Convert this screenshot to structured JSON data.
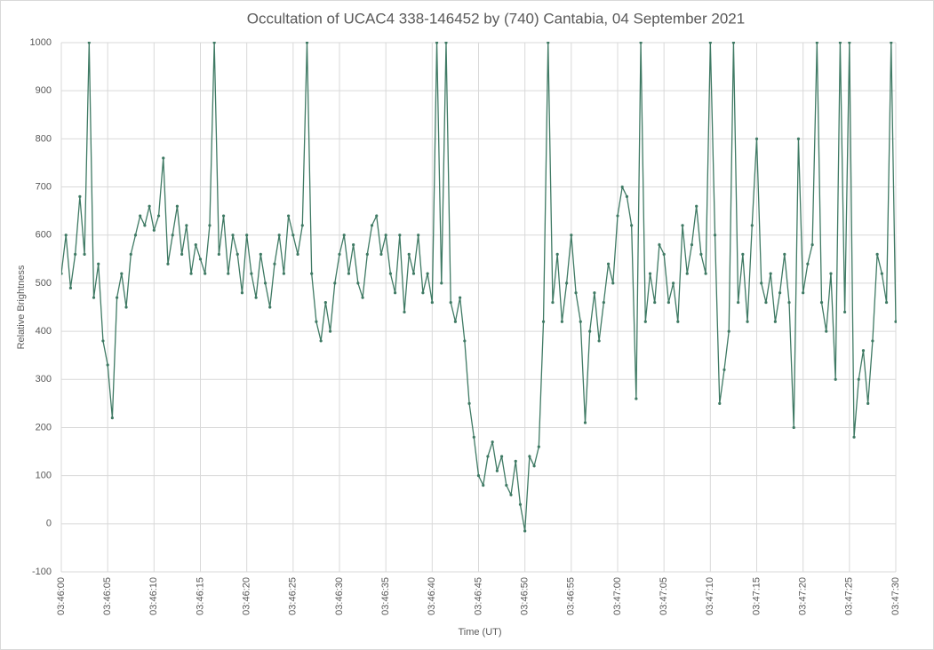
{
  "chart_data": {
    "type": "line",
    "title": "Occultation of UCAC4 338-146452 by (740) Cantabia, 04 September 2021",
    "xlabel": "Time (UT)",
    "ylabel": "Relative Brightness",
    "x": [
      0,
      0.5,
      1,
      1.5,
      2,
      2.5,
      3,
      3.5,
      4,
      4.5,
      5,
      5.5,
      6,
      6.5,
      7,
      7.5,
      8,
      8.5,
      9,
      9.5,
      10,
      10.5,
      11,
      11.5,
      12,
      12.5,
      13,
      13.5,
      14,
      14.5,
      15,
      15.5,
      16,
      16.5,
      17,
      17.5,
      18,
      18.5,
      19,
      19.5,
      20,
      20.5,
      21,
      21.5,
      22,
      22.5,
      23,
      23.5,
      24,
      24.5,
      25,
      25.5,
      26,
      26.5,
      27,
      27.5,
      28,
      28.5,
      29,
      29.5,
      30,
      30.5,
      31,
      31.5,
      32,
      32.5,
      33,
      33.5,
      34,
      34.5,
      35,
      35.5,
      36,
      36.5,
      37,
      37.5,
      38,
      38.5,
      39,
      39.5,
      40,
      40.5,
      41,
      41.5,
      42,
      42.5,
      43,
      43.5,
      44,
      44.5,
      45,
      45.5,
      46,
      46.5,
      47,
      47.5,
      48,
      48.5,
      49,
      49.5,
      50,
      50.5,
      51,
      51.5,
      52,
      52.5,
      53,
      53.5,
      54,
      54.5,
      55,
      55.5,
      56,
      56.5,
      57,
      57.5,
      58,
      58.5,
      59,
      59.5,
      60,
      60.5,
      61,
      61.5,
      62,
      62.5,
      63,
      63.5,
      64,
      64.5,
      65,
      65.5,
      66,
      66.5,
      67,
      67.5,
      68,
      68.5,
      69,
      69.5,
      70,
      70.5,
      71,
      71.5,
      72,
      72.5,
      73,
      73.5,
      74,
      74.5,
      75,
      75.5,
      76,
      76.5,
      77,
      77.5,
      78,
      78.5,
      79,
      79.5,
      80,
      80.5,
      81,
      81.5,
      82,
      82.5,
      83,
      83.5,
      84,
      84.5,
      85,
      85.5,
      86,
      86.5,
      87,
      87.5,
      88,
      88.5,
      89,
      89.5,
      90
    ],
    "series": [
      {
        "name": "Relative Brightness",
        "color": "#3f7a64",
        "values": [
          520,
          600,
          490,
          560,
          680,
          560,
          1000,
          470,
          540,
          380,
          330,
          220,
          470,
          520,
          450,
          560,
          600,
          640,
          620,
          660,
          610,
          640,
          760,
          540,
          600,
          660,
          560,
          620,
          520,
          580,
          550,
          520,
          620,
          1000,
          560,
          640,
          520,
          600,
          560,
          480,
          600,
          520,
          470,
          560,
          500,
          450,
          540,
          600,
          520,
          640,
          600,
          560,
          620,
          1000,
          520,
          420,
          380,
          460,
          400,
          500,
          560,
          600,
          520,
          580,
          500,
          470,
          560,
          620,
          640,
          560,
          600,
          520,
          480,
          600,
          440,
          560,
          520,
          600,
          480,
          520,
          460,
          1000,
          500,
          1000,
          460,
          420,
          470,
          380,
          250,
          180,
          100,
          80,
          140,
          170,
          110,
          140,
          80,
          60,
          130,
          40,
          -15,
          140,
          120,
          160,
          420,
          1000,
          460,
          560,
          420,
          500,
          600,
          480,
          420,
          210,
          400,
          480,
          380,
          460,
          540,
          500,
          640,
          700,
          680,
          620,
          260,
          1000,
          420,
          520,
          460,
          580,
          560,
          460,
          500,
          420,
          620,
          520,
          580,
          660,
          560,
          520,
          1000,
          600,
          250,
          320,
          400,
          1000,
          460,
          560,
          420,
          620,
          800,
          500,
          460,
          520,
          420,
          480,
          560,
          460,
          200,
          800,
          480,
          540,
          580,
          1000,
          460,
          400,
          520,
          300,
          1000,
          440,
          1000,
          180,
          300,
          360,
          250,
          380,
          560,
          520,
          460,
          1000,
          420
        ]
      }
    ],
    "xlim": [
      0,
      90
    ],
    "xticks": [
      {
        "value": 0,
        "label": "03:46:00"
      },
      {
        "value": 5,
        "label": "03:46:05"
      },
      {
        "value": 10,
        "label": "03:46:10"
      },
      {
        "value": 15,
        "label": "03:46:15"
      },
      {
        "value": 20,
        "label": "03:46:20"
      },
      {
        "value": 25,
        "label": "03:46:25"
      },
      {
        "value": 30,
        "label": "03:46:30"
      },
      {
        "value": 35,
        "label": "03:46:35"
      },
      {
        "value": 40,
        "label": "03:46:40"
      },
      {
        "value": 45,
        "label": "03:46:45"
      },
      {
        "value": 50,
        "label": "03:46:50"
      },
      {
        "value": 55,
        "label": "03:46:55"
      },
      {
        "value": 60,
        "label": "03:47:00"
      },
      {
        "value": 65,
        "label": "03:47:05"
      },
      {
        "value": 70,
        "label": "03:47:10"
      },
      {
        "value": 75,
        "label": "03:47:15"
      },
      {
        "value": 80,
        "label": "03:47:20"
      },
      {
        "value": 85,
        "label": "03:47:25"
      },
      {
        "value": 90,
        "label": "03:47:30"
      }
    ],
    "ylim": [
      -100,
      1000
    ],
    "yticks": [
      -100,
      0,
      100,
      200,
      300,
      400,
      500,
      600,
      700,
      800,
      900,
      1000
    ],
    "grid": true
  }
}
